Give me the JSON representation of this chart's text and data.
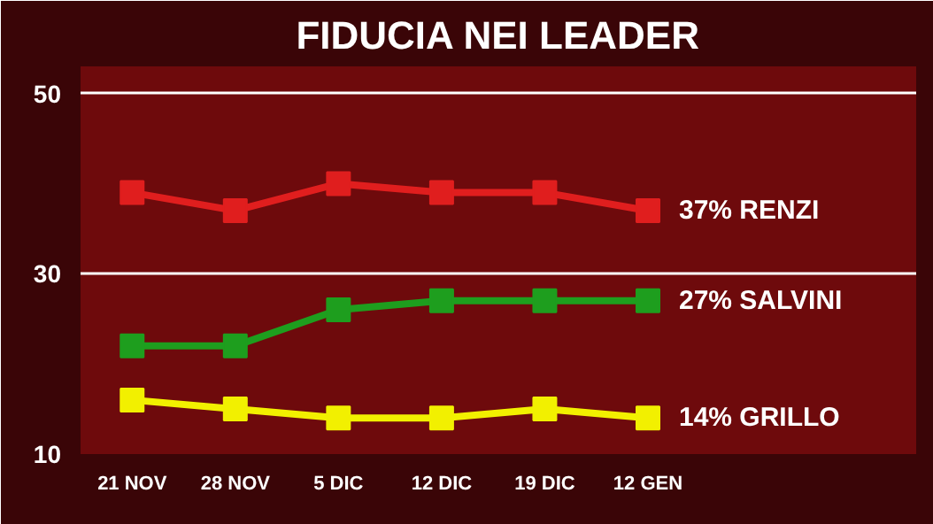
{
  "chart_data": {
    "type": "line",
    "title": "FIDUCIA NEI LEADER",
    "categories": [
      "21 NOV",
      "28 NOV",
      "5 DIC",
      "12 DIC",
      "19 DIC",
      "12 GEN"
    ],
    "series": [
      {
        "name": "RENZI",
        "color": "#e01e1e",
        "values": [
          39,
          37,
          40,
          39,
          39,
          37
        ],
        "value_labels": [
          null,
          null,
          null,
          null,
          null,
          "37%"
        ]
      },
      {
        "name": "SALVINI",
        "color": "#1e9e1e",
        "values": [
          22,
          22,
          26,
          27,
          27,
          27
        ],
        "value_labels": [
          null,
          null,
          null,
          null,
          null,
          "27%"
        ]
      },
      {
        "name": "GRILLO",
        "color": "#f2f000",
        "values": [
          16,
          15,
          14,
          14,
          15,
          14
        ],
        "value_labels": [
          null,
          null,
          null,
          null,
          null,
          "14%"
        ]
      }
    ],
    "ylim": [
      10,
      53
    ],
    "yticks": [
      10,
      30,
      50
    ],
    "grid": "y",
    "marker": "square",
    "line_style": "solid"
  }
}
